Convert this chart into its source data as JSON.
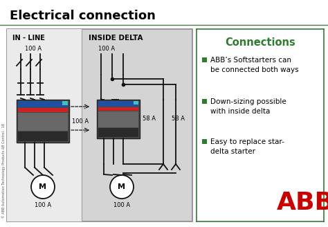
{
  "title": "Electrical connection",
  "title_fontsize": 13,
  "title_fontweight": "bold",
  "bg_color": "#ffffff",
  "diagram_bg": "#d4d4d4",
  "left_bg": "#ebebeb",
  "connections_color": "#2e7d2e",
  "bullet_color": "#2e7d2e",
  "bullets": [
    "ABB’s Softstarters can\nbe connected both ways",
    "Down-sizing possible\nwith inside delta",
    "Easy to replace star-\ndelta starter"
  ],
  "left_label": "IN - LINE",
  "right_label": "INSIDE DELTA",
  "inline_100A_top": "100 A",
  "inline_100A_mid": "100 A",
  "inline_100A_bot": "100 A",
  "delta_100A_top": "100 A",
  "delta_58A_left": "58 A",
  "delta_58A_right": "58 A",
  "delta_100A_bot": "100 A",
  "motor_label": "M",
  "watermark": "© ABB Automation Technology Products AB Control - 18",
  "abb_logo_color": "#cc0000",
  "connections_title": "Connections",
  "line_color": "#111111",
  "title_underline_color": "#4a7a4a"
}
